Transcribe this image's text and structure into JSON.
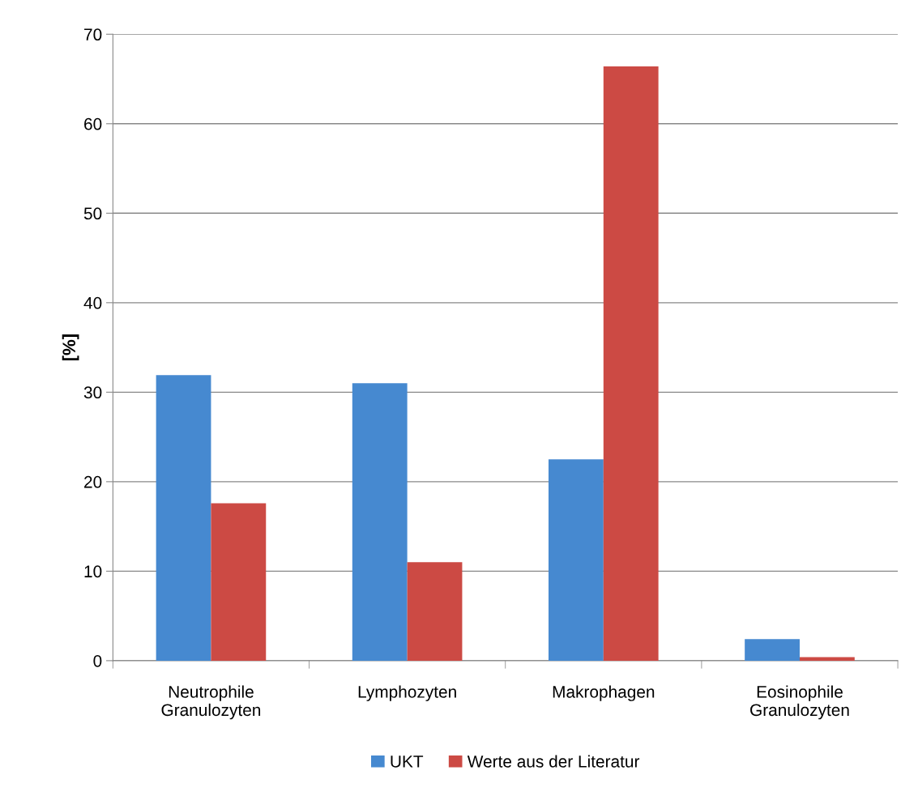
{
  "chart_data": {
    "type": "bar",
    "ylabel": "[%]",
    "categories": [
      "Neutrophile\nGranulozyten",
      "Lymphozyten",
      "Makrophagen",
      "Eosinophile\nGranulozyten"
    ],
    "series": [
      {
        "name": "UKT",
        "color": "#4689d0",
        "values": [
          31.9,
          31.0,
          22.5,
          2.4
        ]
      },
      {
        "name": "Werte aus der Literatur",
        "color": "#cc4a44",
        "values": [
          17.6,
          11.0,
          66.4,
          0.4
        ]
      }
    ],
    "ylim": [
      0,
      70
    ],
    "yticks": [
      0,
      10,
      20,
      30,
      40,
      50,
      60,
      70
    ],
    "grid": "y",
    "legend": "bottom"
  }
}
